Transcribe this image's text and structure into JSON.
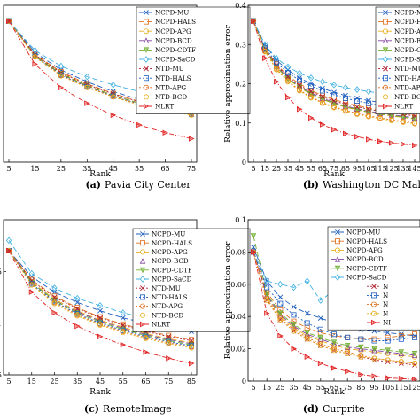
{
  "series_styles": [
    {
      "name": "NCPD-MU",
      "color": "#1f5fbf",
      "dash": "6,3",
      "marker": "x"
    },
    {
      "name": "NCPD-HALS",
      "color": "#e07020",
      "dash": "6,3",
      "marker": "square"
    },
    {
      "name": "NCPD-APG",
      "color": "#e8b020",
      "dash": "6,3",
      "marker": "circle"
    },
    {
      "name": "NCPD-BCD",
      "color": "#8040a0",
      "dash": "6,3",
      "marker": "triangle-up"
    },
    {
      "name": "NCPD-CDTF",
      "color": "#70b030",
      "dash": "6,3",
      "marker": "triangle-down"
    },
    {
      "name": "NCPD-SaCD",
      "color": "#40b0e0",
      "dash": "6,3",
      "marker": "diamond"
    },
    {
      "name": "NTD-MU",
      "color": "#b02030",
      "dash": "2,2",
      "marker": "x"
    },
    {
      "name": "NTD-HALS",
      "color": "#1f5fbf",
      "dash": "2,2",
      "marker": "square"
    },
    {
      "name": "NTD-APG",
      "color": "#e07020",
      "dash": "2,2",
      "marker": "circle"
    },
    {
      "name": "NTD-BCD",
      "color": "#e8b020",
      "dash": "2,2",
      "marker": "circle"
    },
    {
      "name": "NLRT",
      "color": "#e02020",
      "dash": "5,2,1,2",
      "marker": "triangle-right"
    }
  ],
  "chart_data": [
    {
      "type": "line",
      "caption_letter": "(a)",
      "caption": "Pavia City Center",
      "xlabel": "Rank",
      "ylabel": "",
      "x": [
        5,
        15,
        25,
        35,
        45,
        55,
        65,
        75
      ],
      "xticks": [
        "5",
        "15",
        "25",
        "35",
        "45",
        "55",
        "65",
        "75"
      ],
      "yticks": [],
      "ylim": [
        0,
        0.4
      ],
      "series": [
        {
          "name": "NCPD-MU",
          "values": [
            0.36,
            0.28,
            0.235,
            0.205,
            0.18,
            0.16,
            0.145,
            0.135
          ]
        },
        {
          "name": "NCPD-HALS",
          "values": [
            0.36,
            0.275,
            0.23,
            0.2,
            0.175,
            0.155,
            0.14,
            0.128
          ]
        },
        {
          "name": "NCPD-APG",
          "values": [
            0.36,
            0.272,
            0.226,
            0.196,
            0.171,
            0.151,
            0.136,
            0.125
          ]
        },
        {
          "name": "NCPD-BCD",
          "values": [
            0.36,
            0.27,
            0.224,
            0.194,
            0.17,
            0.15,
            0.135,
            0.124
          ]
        },
        {
          "name": "NCPD-CDTF",
          "values": [
            0.36,
            0.271,
            0.225,
            0.195,
            0.17,
            0.15,
            0.135,
            0.124
          ]
        },
        {
          "name": "NCPD-SaCD",
          "values": [
            0.36,
            0.285,
            0.245,
            0.218,
            0.197,
            0.18,
            0.168,
            0.16
          ]
        },
        {
          "name": "NTD-MU",
          "values": [
            0.36,
            0.274,
            0.228,
            0.198,
            0.174,
            0.154,
            0.14,
            0.13
          ]
        },
        {
          "name": "NTD-HALS",
          "values": [
            0.36,
            0.27,
            0.222,
            0.192,
            0.168,
            0.148,
            0.133,
            0.122
          ]
        },
        {
          "name": "NTD-APG",
          "values": [
            0.36,
            0.269,
            0.221,
            0.191,
            0.167,
            0.147,
            0.132,
            0.121
          ]
        },
        {
          "name": "NTD-BCD",
          "values": [
            0.36,
            0.268,
            0.22,
            0.19,
            0.166,
            0.146,
            0.131,
            0.12
          ]
        },
        {
          "name": "NLRT",
          "values": [
            0.36,
            0.25,
            0.19,
            0.15,
            0.12,
            0.095,
            0.075,
            0.06
          ]
        }
      ]
    },
    {
      "type": "line",
      "caption_letter": "(b)",
      "caption": "Washington DC Mall",
      "xlabel": "Rank",
      "ylabel": "Relative approximation error",
      "x": [
        5,
        15,
        25,
        35,
        45,
        55,
        65,
        75,
        85,
        95,
        105,
        115,
        125,
        135,
        145
      ],
      "xticks": [
        "5",
        "15",
        "25",
        "35",
        "45",
        "55",
        "65",
        "75",
        "85",
        "95",
        "105",
        "115",
        "125",
        "135",
        "145"
      ],
      "yticks": [
        "0",
        "0.1",
        "0.2",
        "0.3",
        "0.4"
      ],
      "ylim": [
        0,
        0.4
      ],
      "series": [
        {
          "name": "NCPD-MU",
          "values": [
            0.36,
            0.3,
            0.26,
            0.235,
            0.215,
            0.2,
            0.188,
            0.178,
            0.17,
            0.163,
            0.157,
            0.152,
            0.148,
            0.144,
            0.14
          ]
        },
        {
          "name": "NCPD-HALS",
          "values": [
            0.36,
            0.29,
            0.25,
            0.22,
            0.2,
            0.183,
            0.17,
            0.16,
            0.151,
            0.144,
            0.138,
            0.133,
            0.129,
            0.125,
            0.121
          ]
        },
        {
          "name": "NCPD-APG",
          "values": [
            0.36,
            0.285,
            0.242,
            0.212,
            0.19,
            0.173,
            0.16,
            0.149,
            0.14,
            0.133,
            0.127,
            0.122,
            0.118,
            0.114,
            0.11
          ]
        },
        {
          "name": "NCPD-BCD",
          "values": [
            0.36,
            0.287,
            0.245,
            0.215,
            0.193,
            0.176,
            0.163,
            0.152,
            0.143,
            0.136,
            0.13,
            0.125,
            0.121,
            0.117,
            0.113
          ]
        },
        {
          "name": "NCPD-CDTF",
          "values": [
            0.36,
            0.286,
            0.243,
            0.213,
            0.191,
            0.174,
            0.161,
            0.15,
            0.141,
            0.134,
            0.128,
            0.123,
            0.119,
            0.115,
            0.111
          ]
        },
        {
          "name": "NCPD-SaCD",
          "values": [
            0.36,
            0.3,
            0.265,
            0.243,
            0.227,
            0.215,
            0.205,
            0.197,
            0.19,
            0.185,
            0.18,
            0.176,
            0.172,
            0.169,
            0.166
          ]
        },
        {
          "name": "NTD-MU",
          "values": [
            0.36,
            0.288,
            0.247,
            0.218,
            0.196,
            0.18,
            0.167,
            0.156,
            0.148,
            0.141,
            0.135,
            0.13,
            0.126,
            0.122,
            0.118
          ]
        },
        {
          "name": "NTD-HALS",
          "values": [
            0.36,
            0.292,
            0.254,
            0.228,
            0.209,
            0.194,
            0.182,
            0.172,
            0.163,
            0.156,
            0.15,
            0.145,
            0.14,
            0.136,
            0.132
          ]
        },
        {
          "name": "NTD-APG",
          "values": [
            0.36,
            0.283,
            0.238,
            0.207,
            0.184,
            0.166,
            0.152,
            0.141,
            0.132,
            0.124,
            0.118,
            0.113,
            0.108,
            0.104,
            0.1
          ]
        },
        {
          "name": "NTD-BCD",
          "values": [
            0.36,
            0.282,
            0.236,
            0.205,
            0.182,
            0.164,
            0.15,
            0.139,
            0.13,
            0.122,
            0.116,
            0.111,
            0.106,
            0.102,
            0.098
          ]
        },
        {
          "name": "NLRT",
          "values": [
            0.36,
            0.265,
            0.205,
            0.165,
            0.135,
            0.113,
            0.096,
            0.083,
            0.073,
            0.065,
            0.058,
            0.053,
            0.049,
            0.046,
            0.043
          ]
        }
      ]
    },
    {
      "type": "line",
      "caption_letter": "(c)",
      "caption": "RemoteImage",
      "xlabel": "Rank",
      "ylabel": "",
      "x": [
        5,
        15,
        25,
        35,
        45,
        55,
        65,
        75,
        85
      ],
      "xticks": [
        "5",
        "15",
        "25",
        "35",
        "45",
        "55",
        "65",
        "75",
        "85"
      ],
      "yticks": [
        ".5",
        "1",
        ".5"
      ],
      "ytick_values": [
        0.05,
        0.1,
        0.15
      ],
      "ylim": [
        0.05,
        0.2
      ],
      "series": [
        {
          "name": "NCPD-MU",
          "values": [
            0.17,
            0.145,
            0.13,
            0.12,
            0.112,
            0.105,
            0.1,
            0.095,
            0.092
          ]
        },
        {
          "name": "NCPD-HALS",
          "values": [
            0.17,
            0.142,
            0.126,
            0.115,
            0.106,
            0.099,
            0.093,
            0.088,
            0.084
          ]
        },
        {
          "name": "NCPD-APG",
          "values": [
            0.17,
            0.14,
            0.123,
            0.112,
            0.103,
            0.096,
            0.09,
            0.085,
            0.081
          ]
        },
        {
          "name": "NCPD-BCD",
          "values": [
            0.17,
            0.139,
            0.122,
            0.111,
            0.102,
            0.095,
            0.089,
            0.084,
            0.08
          ]
        },
        {
          "name": "NCPD-CDTF",
          "values": [
            0.17,
            0.139,
            0.122,
            0.11,
            0.101,
            0.094,
            0.088,
            0.083,
            0.079
          ]
        },
        {
          "name": "NCPD-SaCD",
          "values": [
            0.18,
            0.148,
            0.134,
            0.124,
            0.117,
            0.11,
            0.105,
            0.101,
            0.098
          ]
        },
        {
          "name": "NTD-MU",
          "values": [
            0.17,
            0.141,
            0.125,
            0.114,
            0.105,
            0.098,
            0.092,
            0.087,
            0.083
          ]
        },
        {
          "name": "NTD-HALS",
          "values": [
            0.17,
            0.138,
            0.121,
            0.109,
            0.1,
            0.093,
            0.087,
            0.082,
            0.078
          ]
        },
        {
          "name": "NTD-APG",
          "values": [
            0.17,
            0.137,
            0.12,
            0.108,
            0.099,
            0.092,
            0.086,
            0.081,
            0.077
          ]
        },
        {
          "name": "NTD-BCD",
          "values": [
            0.17,
            0.137,
            0.119,
            0.107,
            0.098,
            0.091,
            0.085,
            0.08,
            0.076
          ]
        },
        {
          "name": "NLRT",
          "values": [
            0.17,
            0.13,
            0.11,
            0.097,
            0.087,
            0.079,
            0.072,
            0.066,
            0.061
          ]
        }
      ]
    },
    {
      "type": "line",
      "caption_letter": "(d)",
      "caption": "Curprite",
      "xlabel": "Rank",
      "ylabel": "Relative approximation error",
      "x": [
        5,
        15,
        25,
        35,
        45,
        55,
        65,
        75,
        85,
        95,
        105,
        115,
        125
      ],
      "xticks": [
        "5",
        "15",
        "25",
        "35",
        "45",
        "55",
        "65",
        "75",
        "85",
        "95",
        "105",
        "115",
        "125"
      ],
      "yticks": [
        "0",
        "0.02",
        "0.04",
        "0.06",
        "0.08",
        "0.1"
      ],
      "ylim": [
        0,
        0.1
      ],
      "legend_visible": [
        "NCPD-MU",
        "NCPD-HALS",
        "NCPD-APG",
        "NCPD-BCD",
        "NCPD-CDTF",
        "NCPD-SaCD"
      ],
      "legend_partial": [
        "N",
        "N",
        "N",
        "N",
        "NI"
      ],
      "series": [
        {
          "name": "NCPD-MU",
          "values": [
            0.083,
            0.062,
            0.052,
            0.046,
            0.042,
            0.039,
            0.036,
            0.034,
            0.032,
            0.031,
            0.03,
            0.029,
            0.028
          ]
        },
        {
          "name": "NCPD-HALS",
          "values": [
            0.08,
            0.055,
            0.044,
            0.037,
            0.033,
            0.03,
            0.028,
            0.027,
            0.026,
            0.026,
            0.027,
            0.028,
            0.029
          ]
        },
        {
          "name": "NCPD-APG",
          "values": [
            0.08,
            0.052,
            0.04,
            0.033,
            0.028,
            0.025,
            0.022,
            0.02,
            0.019,
            0.018,
            0.017,
            0.016,
            0.015
          ]
        },
        {
          "name": "NCPD-BCD",
          "values": [
            0.08,
            0.053,
            0.041,
            0.034,
            0.029,
            0.026,
            0.023,
            0.021,
            0.02,
            0.019,
            0.018,
            0.017,
            0.016
          ]
        },
        {
          "name": "NCPD-CDTF",
          "values": [
            0.09,
            0.054,
            0.042,
            0.035,
            0.03,
            0.027,
            0.024,
            0.022,
            0.021,
            0.02,
            0.019,
            0.018,
            0.017
          ]
        },
        {
          "name": "NCPD-SaCD",
          "values": [
            0.08,
            0.062,
            0.06,
            0.058,
            0.062,
            0.05,
            0.056,
            0.048,
            0.054,
            0.046,
            0.05,
            0.045,
            0.048
          ]
        },
        {
          "name": "NTD-MU",
          "values": [
            0.08,
            0.05,
            0.038,
            0.031,
            0.026,
            0.022,
            0.019,
            0.017,
            0.015,
            0.013,
            0.012,
            0.011,
            0.01
          ]
        },
        {
          "name": "NTD-HALS",
          "values": [
            0.08,
            0.058,
            0.048,
            0.041,
            0.036,
            0.032,
            0.029,
            0.027,
            0.026,
            0.025,
            0.025,
            0.026,
            0.027
          ]
        },
        {
          "name": "NTD-APG",
          "values": [
            0.08,
            0.051,
            0.039,
            0.032,
            0.027,
            0.023,
            0.02,
            0.018,
            0.016,
            0.014,
            0.013,
            0.012,
            0.011
          ]
        },
        {
          "name": "NTD-BCD",
          "values": [
            0.08,
            0.05,
            0.038,
            0.031,
            0.026,
            0.022,
            0.019,
            0.017,
            0.015,
            0.014,
            0.013,
            0.012,
            0.011
          ]
        },
        {
          "name": "NLRT",
          "values": [
            0.08,
            0.042,
            0.028,
            0.02,
            0.015,
            0.011,
            0.008,
            0.006,
            0.004,
            0.003,
            0.002,
            0.0015,
            0.001
          ]
        }
      ]
    }
  ]
}
